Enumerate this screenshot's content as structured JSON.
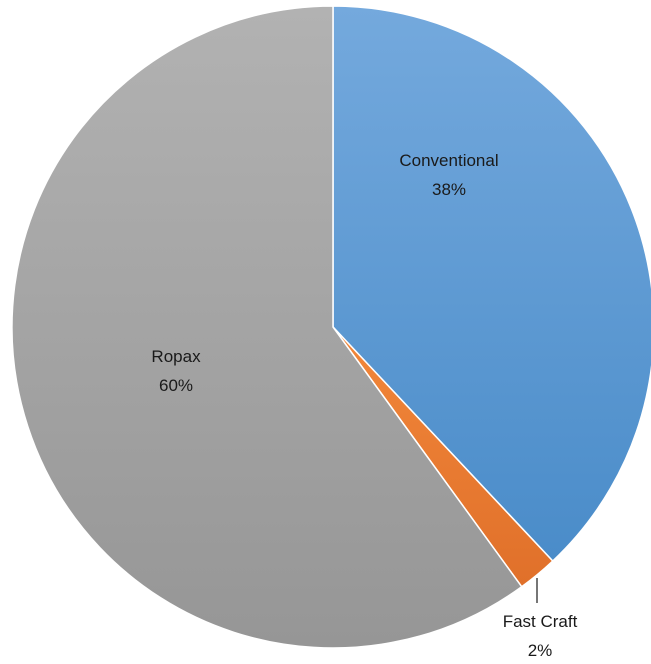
{
  "chart_data": {
    "type": "pie",
    "title": "",
    "start_angle_deg": 0,
    "direction": "clockwise",
    "slices": [
      {
        "label": "Conventional",
        "value": 38,
        "display_value": "38%",
        "color": "#5b9bd5",
        "color_light": "#74a9dd",
        "color_dark": "#4a8cc9"
      },
      {
        "label": "Fast Craft",
        "value": 2,
        "display_value": "2%",
        "color": "#ed7d31",
        "color_light": "#f2873a",
        "color_dark": "#e0702a"
      },
      {
        "label": "Ropax",
        "value": 60,
        "display_value": "60%",
        "color": "#a5a5a5",
        "color_light": "#b2b2b2",
        "color_dark": "#969696"
      }
    ],
    "legend": "none",
    "data_labels": "category and percent"
  }
}
